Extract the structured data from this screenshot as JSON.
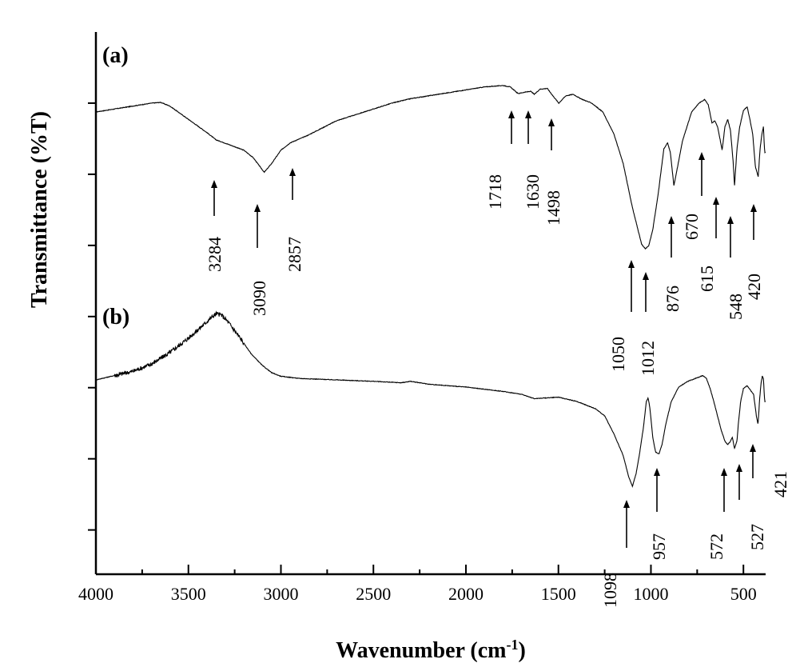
{
  "chart_data": {
    "type": "line",
    "xlabel": "Wavenumber (cm",
    "xlabel_sup": "-1",
    "xlabel_end": ")",
    "ylabel": "Transmittance (%T)",
    "xlim": [
      4000,
      380
    ],
    "x_reversed": true,
    "x_ticks": [
      4000,
      3500,
      3000,
      2500,
      2000,
      1500,
      1000,
      500
    ],
    "y_major_tick_count": 7,
    "grid": false,
    "series": [
      {
        "name": "(a)",
        "points": [
          [
            4000,
            0.0
          ],
          [
            3900,
            0.04
          ],
          [
            3800,
            0.08
          ],
          [
            3700,
            0.12
          ],
          [
            3650,
            0.13
          ],
          [
            3600,
            0.08
          ],
          [
            3500,
            -0.1
          ],
          [
            3400,
            -0.28
          ],
          [
            3350,
            -0.38
          ],
          [
            3284,
            -0.44
          ],
          [
            3200,
            -0.52
          ],
          [
            3150,
            -0.62
          ],
          [
            3090,
            -0.82
          ],
          [
            3050,
            -0.7
          ],
          [
            3000,
            -0.52
          ],
          [
            2950,
            -0.42
          ],
          [
            2857,
            -0.32
          ],
          [
            2700,
            -0.12
          ],
          [
            2500,
            0.04
          ],
          [
            2400,
            0.12
          ],
          [
            2300,
            0.18
          ],
          [
            2100,
            0.26
          ],
          [
            2000,
            0.3
          ],
          [
            1900,
            0.34
          ],
          [
            1800,
            0.36
          ],
          [
            1760,
            0.34
          ],
          [
            1718,
            0.25
          ],
          [
            1680,
            0.27
          ],
          [
            1650,
            0.28
          ],
          [
            1630,
            0.24
          ],
          [
            1600,
            0.31
          ],
          [
            1560,
            0.32
          ],
          [
            1530,
            0.22
          ],
          [
            1498,
            0.12
          ],
          [
            1460,
            0.22
          ],
          [
            1420,
            0.24
          ],
          [
            1380,
            0.18
          ],
          [
            1320,
            0.12
          ],
          [
            1260,
            0.0
          ],
          [
            1200,
            -0.3
          ],
          [
            1150,
            -0.7
          ],
          [
            1100,
            -1.3
          ],
          [
            1050,
            -1.8
          ],
          [
            1030,
            -1.86
          ],
          [
            1012,
            -1.82
          ],
          [
            990,
            -1.6
          ],
          [
            960,
            -1.1
          ],
          [
            930,
            -0.5
          ],
          [
            910,
            -0.42
          ],
          [
            895,
            -0.55
          ],
          [
            876,
            -1.0
          ],
          [
            860,
            -0.8
          ],
          [
            830,
            -0.4
          ],
          [
            780,
            0.0
          ],
          [
            740,
            0.12
          ],
          [
            710,
            0.17
          ],
          [
            690,
            0.1
          ],
          [
            670,
            -0.15
          ],
          [
            655,
            -0.12
          ],
          [
            640,
            -0.2
          ],
          [
            628,
            -0.35
          ],
          [
            615,
            -0.52
          ],
          [
            600,
            -0.2
          ],
          [
            585,
            -0.1
          ],
          [
            570,
            -0.25
          ],
          [
            555,
            -0.7
          ],
          [
            548,
            -1.0
          ],
          [
            535,
            -0.5
          ],
          [
            520,
            -0.2
          ],
          [
            500,
            0.02
          ],
          [
            480,
            0.07
          ],
          [
            465,
            -0.1
          ],
          [
            450,
            -0.3
          ],
          [
            435,
            -0.75
          ],
          [
            420,
            -0.88
          ],
          [
            410,
            -0.5
          ],
          [
            400,
            -0.3
          ],
          [
            392,
            -0.2
          ],
          [
            385,
            -0.55
          ]
        ]
      },
      {
        "name": "(b)",
        "points": [
          [
            4000,
            0.0
          ],
          [
            3900,
            0.06
          ],
          [
            3800,
            0.12
          ],
          [
            3700,
            0.22
          ],
          [
            3600,
            0.38
          ],
          [
            3500,
            0.58
          ],
          [
            3420,
            0.76
          ],
          [
            3380,
            0.86
          ],
          [
            3350,
            0.92
          ],
          [
            3320,
            0.9
          ],
          [
            3284,
            0.8
          ],
          [
            3220,
            0.58
          ],
          [
            3160,
            0.36
          ],
          [
            3100,
            0.2
          ],
          [
            3050,
            0.1
          ],
          [
            3000,
            0.05
          ],
          [
            2900,
            0.02
          ],
          [
            2700,
            0.0
          ],
          [
            2500,
            -0.02
          ],
          [
            2350,
            -0.04
          ],
          [
            2300,
            -0.02
          ],
          [
            2200,
            -0.06
          ],
          [
            2000,
            -0.1
          ],
          [
            1800,
            -0.16
          ],
          [
            1700,
            -0.2
          ],
          [
            1630,
            -0.26
          ],
          [
            1500,
            -0.24
          ],
          [
            1400,
            -0.3
          ],
          [
            1300,
            -0.4
          ],
          [
            1250,
            -0.5
          ],
          [
            1200,
            -0.75
          ],
          [
            1150,
            -1.05
          ],
          [
            1120,
            -1.35
          ],
          [
            1100,
            -1.48
          ],
          [
            1080,
            -1.3
          ],
          [
            1060,
            -1.0
          ],
          [
            1040,
            -0.65
          ],
          [
            1025,
            -0.3
          ],
          [
            1015,
            -0.25
          ],
          [
            1005,
            -0.4
          ],
          [
            990,
            -0.8
          ],
          [
            975,
            -1.0
          ],
          [
            957,
            -1.03
          ],
          [
            940,
            -0.9
          ],
          [
            920,
            -0.62
          ],
          [
            890,
            -0.3
          ],
          [
            850,
            -0.1
          ],
          [
            800,
            -0.02
          ],
          [
            760,
            0.02
          ],
          [
            720,
            0.06
          ],
          [
            700,
            0.02
          ],
          [
            680,
            -0.12
          ],
          [
            660,
            -0.3
          ],
          [
            640,
            -0.5
          ],
          [
            620,
            -0.7
          ],
          [
            600,
            -0.85
          ],
          [
            585,
            -0.9
          ],
          [
            572,
            -0.86
          ],
          [
            560,
            -0.8
          ],
          [
            548,
            -0.95
          ],
          [
            535,
            -0.85
          ],
          [
            527,
            -0.6
          ],
          [
            515,
            -0.3
          ],
          [
            500,
            -0.12
          ],
          [
            480,
            -0.08
          ],
          [
            460,
            -0.15
          ],
          [
            445,
            -0.2
          ],
          [
            430,
            -0.5
          ],
          [
            421,
            -0.62
          ],
          [
            412,
            -0.25
          ],
          [
            405,
            -0.05
          ],
          [
            398,
            0.05
          ],
          [
            392,
            0.02
          ],
          [
            385,
            -0.3
          ]
        ]
      }
    ],
    "panel_labels": [
      "(a)",
      "(b)"
    ],
    "annotations_a": [
      {
        "label": "3284",
        "x": 3284
      },
      {
        "label": "3090",
        "x": 3090
      },
      {
        "label": "2857",
        "x": 2857
      },
      {
        "label": "1718",
        "x": 1718
      },
      {
        "label": "1630",
        "x": 1630
      },
      {
        "label": "1498",
        "x": 1498
      },
      {
        "label": "1050",
        "x": 1050
      },
      {
        "label": "1012",
        "x": 1012
      },
      {
        "label": "876",
        "x": 876
      },
      {
        "label": "670",
        "x": 670
      },
      {
        "label": "615",
        "x": 615
      },
      {
        "label": "548",
        "x": 548
      },
      {
        "label": "420",
        "x": 420
      }
    ],
    "annotations_b": [
      {
        "label": "1098",
        "x": 1098
      },
      {
        "label": "957",
        "x": 957
      },
      {
        "label": "572",
        "x": 572
      },
      {
        "label": "527",
        "x": 527
      },
      {
        "label": "421",
        "x": 421
      }
    ]
  }
}
